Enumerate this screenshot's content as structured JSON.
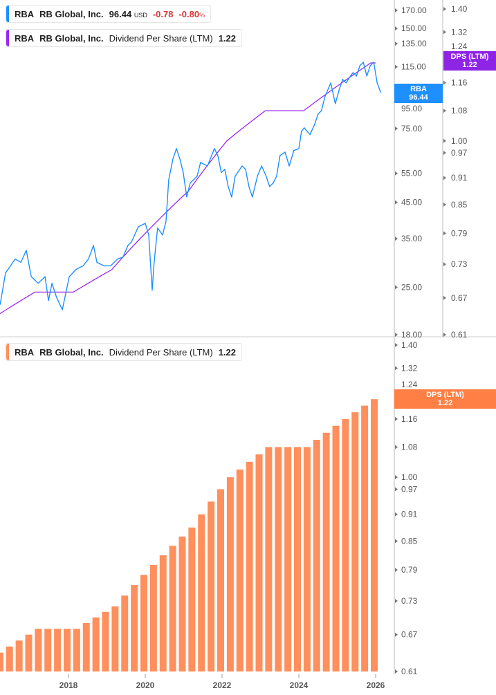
{
  "legends": {
    "price": {
      "ticker": "RBA",
      "name": "RB Global, Inc.",
      "price": "96.44",
      "currency": "USD",
      "change": "-0.78",
      "change_pct": "-0.80",
      "pct_sign": "%"
    },
    "dps_top": {
      "ticker": "RBA",
      "name": "RB Global, Inc.",
      "metric": "Dividend Per Share (LTM)",
      "value": "1.22"
    },
    "dps_bottom": {
      "ticker": "RBA",
      "name": "RB Global, Inc.",
      "metric": "Dividend Per Share (LTM)",
      "value": "1.22"
    }
  },
  "tags": {
    "price": {
      "label": "RBA",
      "value": "96.44"
    },
    "dps_top": {
      "label": "DPS (LTM)",
      "value": "1.22"
    },
    "dps_bottom": {
      "label": "DPS (LTM)",
      "value": "1.22"
    }
  },
  "colors": {
    "price": "#1e8fff",
    "dps_line": "#9b27f5",
    "dps_bar": "#ff8f5c",
    "dps_tag": "#8e24e6",
    "bar_tag": "#ff7f45"
  },
  "chart_data": [
    {
      "type": "line",
      "scale": "log",
      "series": [
        {
          "name": "RBA",
          "axis": "left",
          "x": [
            2016.22,
            2016.36,
            2016.49,
            2016.61,
            2016.76,
            2016.9,
            2017.03,
            2017.21,
            2017.39,
            2017.48,
            2017.57,
            2017.69,
            2017.84,
            2018.02,
            2018.2,
            2018.38,
            2018.52,
            2018.65,
            2018.74,
            2018.92,
            2019.1,
            2019.28,
            2019.42,
            2019.55,
            2019.64,
            2019.82,
            2020.0,
            2020.09,
            2020.18,
            2020.23,
            2020.32,
            2020.45,
            2020.54,
            2020.61,
            2020.72,
            2020.81,
            2020.9,
            2020.99,
            2021.08,
            2021.17,
            2021.35,
            2021.44,
            2021.62,
            2021.8,
            2021.89,
            2021.98,
            2022.07,
            2022.16,
            2022.25,
            2022.34,
            2022.52,
            2022.61,
            2022.7,
            2022.79,
            2022.92,
            2023.03,
            2023.15,
            2023.24,
            2023.33,
            2023.42,
            2023.51,
            2023.64,
            2023.75,
            2023.87,
            2024.0,
            2024.07,
            2024.14,
            2024.29,
            2024.41,
            2024.5,
            2024.59,
            2024.68,
            2024.83,
            2024.95,
            2025.05,
            2025.14,
            2025.23,
            2025.32,
            2025.41,
            2025.5,
            2025.59,
            2025.68,
            2025.77,
            2025.86,
            2025.95,
            2026.04,
            2026.13
          ],
          "y": [
            22.2,
            27.6,
            29.0,
            30.4,
            29.7,
            32.3,
            26.9,
            25.7,
            26.9,
            22.8,
            25.7,
            23.3,
            21.4,
            26.9,
            28.3,
            29.0,
            30.4,
            33.4,
            29.7,
            29.0,
            29.0,
            30.4,
            30.8,
            33.4,
            34.2,
            38.0,
            38.9,
            35.9,
            24.5,
            29.7,
            37.7,
            35.9,
            39.5,
            52.6,
            60.8,
            65.3,
            60.8,
            55.3,
            46.7,
            51.4,
            53.9,
            59.3,
            57.9,
            65.3,
            62.2,
            55.3,
            56.6,
            50.2,
            46.7,
            53.9,
            57.9,
            56.6,
            50.2,
            46.7,
            53.9,
            57.9,
            53.9,
            50.2,
            51.4,
            53.9,
            62.2,
            63.7,
            57.9,
            64.4,
            65.3,
            73.6,
            75.4,
            71.9,
            77.2,
            82.9,
            84.9,
            93.5,
            102.9,
            89.1,
            98.1,
            105.4,
            102.9,
            106.9,
            110.5,
            107.9,
            115.9,
            118.7,
            107.9,
            115.9,
            118.7,
            102.9,
            96.44
          ]
        },
        {
          "name": "Dividend Per Share (LTM)",
          "axis": "right",
          "ref": "dps"
        }
      ],
      "left_axis": {
        "ticks": [
          "170.00",
          "150.00",
          "135.00",
          "115.00",
          "95.00",
          "75.00",
          "55.00",
          "45.00",
          "35.00",
          "25.00",
          "18.00"
        ],
        "range": [
          18,
          170
        ]
      },
      "right_axis": {
        "ticks": [
          "1.40",
          "1.32",
          "1.24",
          "1.16",
          "1.08",
          "1.00",
          "0.97",
          "0.91",
          "0.85",
          "0.79",
          "0.73",
          "0.67",
          "0.61"
        ],
        "range": [
          0.61,
          1.4
        ]
      }
    },
    {
      "type": "bar",
      "scale": "log",
      "id": "dps",
      "x": [
        2016.25,
        2016.5,
        2016.75,
        2017.0,
        2017.25,
        2017.5,
        2017.75,
        2018.0,
        2018.25,
        2018.5,
        2018.75,
        2019.0,
        2019.25,
        2019.5,
        2019.75,
        2020.0,
        2020.25,
        2020.5,
        2020.75,
        2021.0,
        2021.25,
        2021.5,
        2021.75,
        2022.0,
        2022.25,
        2022.5,
        2022.75,
        2023.0,
        2023.25,
        2023.5,
        2023.75,
        2024.0,
        2024.25,
        2024.5,
        2024.75,
        2025.0,
        2025.25,
        2025.5,
        2025.75,
        2026.0
      ],
      "values": [
        0.64,
        0.65,
        0.66,
        0.67,
        0.68,
        0.68,
        0.68,
        0.68,
        0.68,
        0.69,
        0.7,
        0.71,
        0.72,
        0.74,
        0.76,
        0.78,
        0.8,
        0.82,
        0.84,
        0.86,
        0.88,
        0.91,
        0.94,
        0.97,
        1.0,
        1.02,
        1.04,
        1.06,
        1.08,
        1.08,
        1.08,
        1.08,
        1.08,
        1.1,
        1.12,
        1.14,
        1.16,
        1.18,
        1.2,
        1.22
      ],
      "y_axis": {
        "ticks": [
          "1.40",
          "1.32",
          "1.24",
          "1.16",
          "1.08",
          "1.00",
          "0.97",
          "0.91",
          "0.85",
          "0.79",
          "0.73",
          "0.67",
          "0.61"
        ],
        "range": [
          0.61,
          1.4
        ]
      },
      "x_ticks": [
        "2018",
        "2020",
        "2022",
        "2024",
        "2026"
      ]
    }
  ]
}
